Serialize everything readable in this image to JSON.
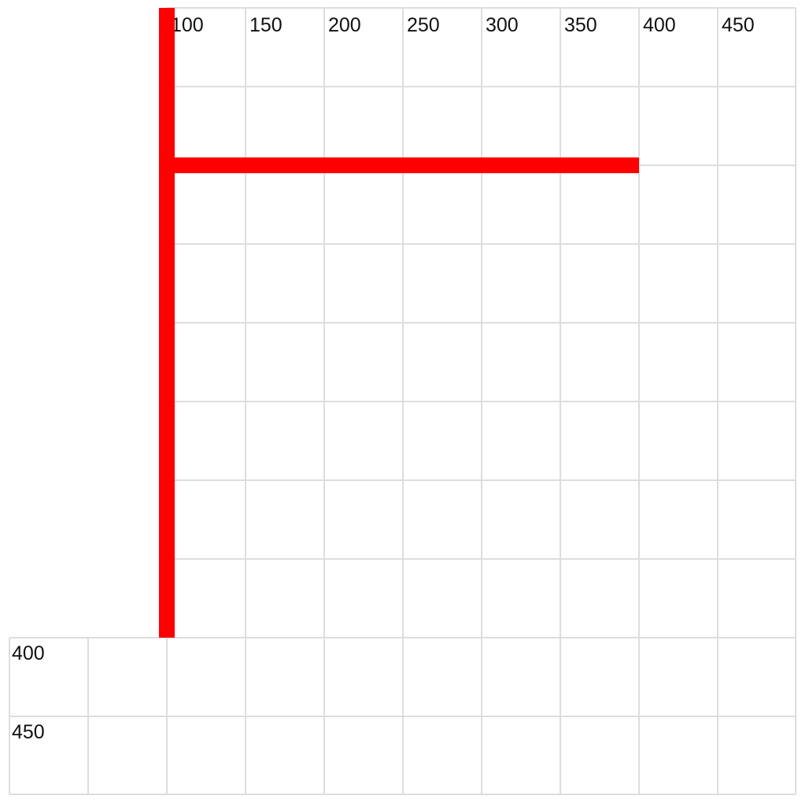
{
  "grid": {
    "unit_step": 50,
    "line_color": "#dddddd",
    "background": "#ffffff"
  },
  "top_labels": [
    "100",
    "150",
    "200",
    "250",
    "300",
    "350",
    "400",
    "450"
  ],
  "left_labels": [
    "400",
    "450"
  ],
  "shapes": {
    "color": "#ff0000",
    "vertical_bar": {
      "x": 100,
      "y_from": 0,
      "y_to": 400
    },
    "horizontal_bar": {
      "y": 100,
      "x_from": 100,
      "x_to": 400
    }
  }
}
